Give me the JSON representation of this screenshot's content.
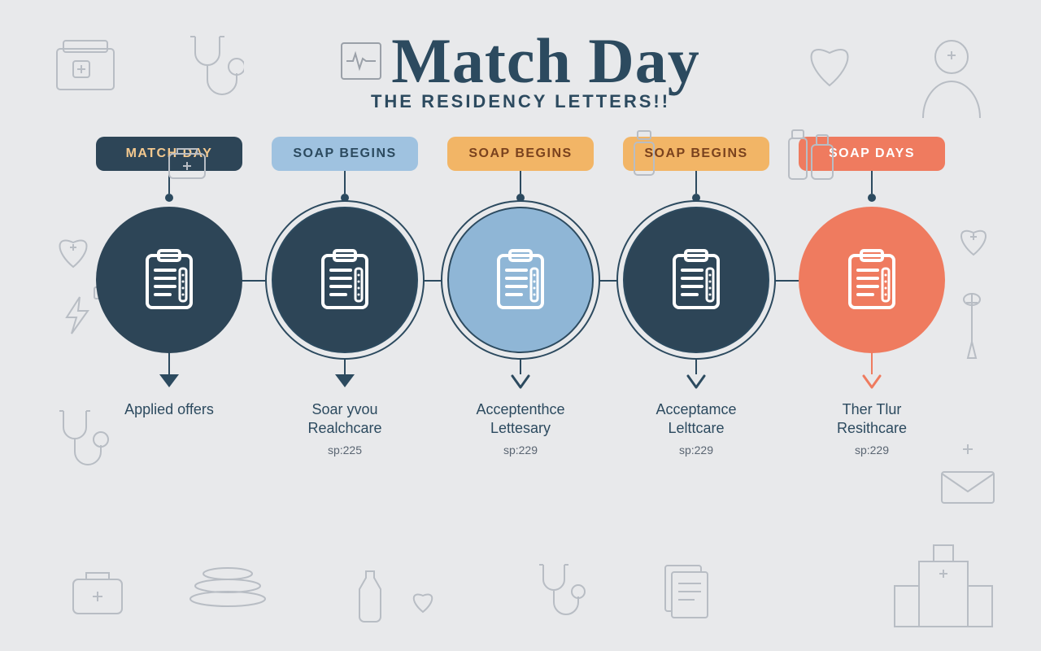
{
  "header": {
    "title": "Match Day",
    "subtitle": "THE RESIDENCY LETTERS!!",
    "title_color": "#2c4a5f",
    "title_fontsize": 78,
    "subtitle_fontsize": 22
  },
  "background_color": "#e8e9eb",
  "icon_stroke": "#b8bdc4",
  "timeline": {
    "connector_color": "#2c4a5f",
    "pills": [
      {
        "label": "MATCH DAY",
        "bg": "#2d4557",
        "fg": "#f4c98f"
      },
      {
        "label": "SOAP BEGINS",
        "bg": "#9fc2e0",
        "fg": "#2c4a5f"
      },
      {
        "label": "SOAP BEGINS",
        "bg": "#f2b566",
        "fg": "#7a421e"
      },
      {
        "label": "SOAP BEGINS",
        "bg": "#f2b566",
        "fg": "#7a421e"
      },
      {
        "label": "SOAP DAYS",
        "bg": "#ef7b5f",
        "fg": "#ffffff"
      }
    ],
    "circles": [
      {
        "fill": "#2d4557",
        "icon_stroke": "#ffffff",
        "ring": false
      },
      {
        "fill": "#2d4557",
        "icon_stroke": "#ffffff",
        "ring": true
      },
      {
        "fill": "#8fb6d6",
        "icon_stroke": "#ffffff",
        "ring": true
      },
      {
        "fill": "#2d4557",
        "icon_stroke": "#ffffff",
        "ring": true
      },
      {
        "fill": "#ef7b5f",
        "icon_stroke": "#ffffff",
        "ring": false
      }
    ],
    "arrows": [
      {
        "color": "#2c4a5f",
        "style": "solid"
      },
      {
        "color": "#2c4a5f",
        "style": "solid"
      },
      {
        "color": "#2c4a5f",
        "style": "outline"
      },
      {
        "color": "#2c4a5f",
        "style": "outline"
      },
      {
        "color": "#ef7b5f",
        "style": "outline"
      }
    ],
    "labels": [
      {
        "title": "Applied offers",
        "sub": ""
      },
      {
        "title": "Soar yvou\nRealchcare",
        "sub": "sp:225"
      },
      {
        "title": "Acceptenthce\nLettesary",
        "sub": "sp:229"
      },
      {
        "title": "Acceptamce\nLelttcare",
        "sub": "sp:229"
      },
      {
        "title": "Ther Tlur\nResithcare",
        "sub": "sp:229"
      }
    ]
  }
}
